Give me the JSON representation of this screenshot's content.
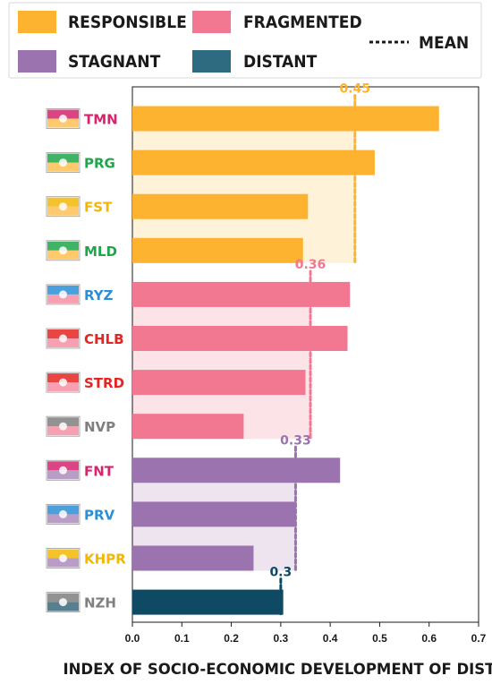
{
  "chart_data": {
    "type": "bar",
    "orientation": "horizontal",
    "xlabel": "INDEX OF SOCIO-ECONOMIC DEVELOPMENT OF DISTRICTS",
    "xlim": [
      0,
      0.7
    ],
    "xticks": [
      "0.0",
      "0.1",
      "0.2",
      "0.3",
      "0.4",
      "0.5",
      "0.6",
      "0.7"
    ],
    "legend": {
      "placement": "top",
      "items": [
        {
          "label": "RESPONSIBLE",
          "color": "#FDB32F"
        },
        {
          "label": "FRAGMENTED",
          "color": "#F27891"
        },
        {
          "label": "STAGNANT",
          "color": "#9B73AF"
        },
        {
          "label": "DISTANT",
          "color": "#2E6A80"
        }
      ],
      "mean_label": "MEAN"
    },
    "groups": [
      {
        "name": "RESPONSIBLE",
        "color": "#FDB32F",
        "band_color": "#FEF2D9",
        "mean": 0.45,
        "mean_label": "0.45"
      },
      {
        "name": "FRAGMENTED",
        "color": "#F27891",
        "band_color": "#FCE3E8",
        "mean": 0.36,
        "mean_label": "0.36"
      },
      {
        "name": "STAGNANT",
        "color": "#9B73AF",
        "band_color": "#EDE4F0",
        "mean": 0.33,
        "mean_label": "0.33"
      },
      {
        "name": "DISTANT",
        "color": "#0E4A63",
        "band_color": "#E1EAEE",
        "mean": 0.3,
        "mean_label": "0.3"
      }
    ],
    "bars": [
      {
        "code": "TMN",
        "group": 0,
        "value": 0.62,
        "label_color": "#D6246E"
      },
      {
        "code": "PRG",
        "group": 0,
        "value": 0.49,
        "label_color": "#1FA64A"
      },
      {
        "code": "FST",
        "group": 0,
        "value": 0.355,
        "label_color": "#F2B705"
      },
      {
        "code": "MLD",
        "group": 0,
        "value": 0.345,
        "label_color": "#1FA64A"
      },
      {
        "code": "RYZ",
        "group": 1,
        "value": 0.44,
        "label_color": "#2A8FD6"
      },
      {
        "code": "CHLB",
        "group": 1,
        "value": 0.435,
        "label_color": "#E52521"
      },
      {
        "code": "STRD",
        "group": 1,
        "value": 0.35,
        "label_color": "#E52521"
      },
      {
        "code": "NVP",
        "group": 1,
        "value": 0.225,
        "label_color": "#7F7F7F"
      },
      {
        "code": "FNT",
        "group": 2,
        "value": 0.42,
        "label_color": "#D6246E"
      },
      {
        "code": "PRV",
        "group": 2,
        "value": 0.33,
        "label_color": "#2A8FD6"
      },
      {
        "code": "KHPR",
        "group": 2,
        "value": 0.245,
        "label_color": "#F2B705"
      },
      {
        "code": "NZH",
        "group": 3,
        "value": 0.305,
        "label_color": "#7F7F7F"
      }
    ]
  }
}
